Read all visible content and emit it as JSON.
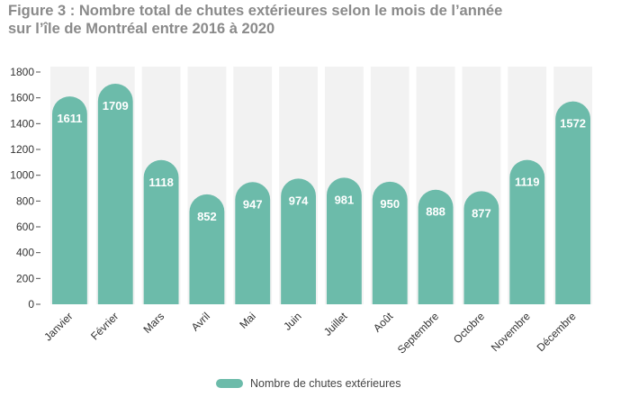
{
  "title_line1": "Figure 3 : Nombre total de chutes extérieures selon le mois de l’année",
  "title_line2": "sur l’île de Montréal entre 2016 à 2020",
  "colors": {
    "bar": "#6cbbaa",
    "column_bg": "#f2f2f2",
    "axis_text": "#333333",
    "title": "#8a8a8a"
  },
  "legend": {
    "label": "Nombre de chutes extérieures"
  },
  "chart_data": {
    "type": "bar",
    "title": "Figure 3 : Nombre total de chutes extérieures selon le mois de l’année sur l’île de Montréal entre 2016 à 2020",
    "xlabel": "",
    "ylabel": "",
    "ylim": [
      0,
      1800
    ],
    "yticks": [
      0,
      200,
      400,
      600,
      800,
      1000,
      1200,
      1400,
      1600,
      1800
    ],
    "ytick_labels": [
      "0",
      "200",
      "400",
      "600",
      "800",
      "1000",
      "1200",
      "1400",
      "1600",
      "1800"
    ],
    "categories": [
      "Janvier",
      "Février",
      "Mars",
      "Avril",
      "Mai",
      "Juin",
      "Juillet",
      "Août",
      "Septembre",
      "Octobre",
      "Novembre",
      "Décembre"
    ],
    "series": [
      {
        "name": "Nombre de chutes extérieures",
        "values": [
          1611,
          1709,
          1118,
          852,
          947,
          974,
          981,
          950,
          888,
          877,
          1119,
          1572
        ]
      }
    ],
    "legend_position": "bottom"
  }
}
